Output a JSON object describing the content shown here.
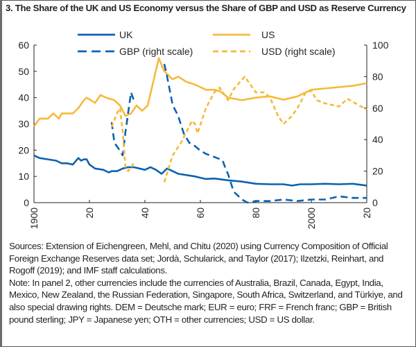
{
  "chart_data": {
    "type": "line",
    "title": "3. The Share of the UK and US Economy versus the Share of GBP and USD as Reserve Currency",
    "xlabel": "",
    "ylabel": "",
    "xlim": [
      1900,
      2020
    ],
    "ylim_left": [
      0,
      60
    ],
    "ylim_right": [
      0,
      100
    ],
    "yticks_left": [
      "0",
      "10",
      "20",
      "30",
      "40",
      "50",
      "60"
    ],
    "yticks_right": [
      "0",
      "20",
      "40",
      "60",
      "80",
      "100"
    ],
    "xticks": [
      {
        "value": 1900,
        "label": "1900"
      },
      {
        "value": 1920,
        "label": "20"
      },
      {
        "value": 1940,
        "label": "40"
      },
      {
        "value": 1960,
        "label": "60"
      },
      {
        "value": 1980,
        "label": "80"
      },
      {
        "value": 2000,
        "label": "2000"
      },
      {
        "value": 2020,
        "label": "20"
      }
    ],
    "grid": false,
    "legend_placement": "top",
    "series": [
      {
        "name": "UK",
        "axis": "left",
        "style": "solid",
        "color": "#0b62b0",
        "x": [
          1900,
          1902,
          1905,
          1908,
          1910,
          1912,
          1914,
          1916,
          1917,
          1918,
          1919,
          1920,
          1922,
          1925,
          1927,
          1928,
          1930,
          1932,
          1934,
          1936,
          1938,
          1940,
          1942,
          1944,
          1946,
          1948,
          1950,
          1952,
          1955,
          1958,
          1960,
          1962,
          1965,
          1970,
          1975,
          1980,
          1985,
          1990,
          1993,
          1996,
          2000,
          2005,
          2010,
          2015,
          2020
        ],
        "y": [
          18,
          17,
          16.5,
          16,
          15,
          15,
          14.5,
          17,
          16,
          16.5,
          16.5,
          14.5,
          13,
          12.5,
          11.5,
          12,
          12,
          13,
          13.5,
          13.5,
          13,
          12.5,
          13.5,
          12.5,
          11,
          13,
          12,
          11,
          10.5,
          10,
          9.5,
          9,
          9.2,
          8.5,
          8,
          7.2,
          7,
          7,
          6.5,
          7,
          7,
          7.2,
          7,
          7.2,
          6.5
        ]
      },
      {
        "name": "US",
        "axis": "left",
        "style": "solid",
        "color": "#f6b93b",
        "x": [
          1900,
          1902,
          1905,
          1907,
          1909,
          1910,
          1914,
          1916,
          1918,
          1919,
          1922,
          1924,
          1926,
          1929,
          1931,
          1933,
          1935,
          1937,
          1939,
          1941,
          1943,
          1945,
          1947,
          1950,
          1952,
          1955,
          1958,
          1960,
          1962,
          1965,
          1967,
          1970,
          1975,
          1980,
          1985,
          1990,
          1995,
          2000,
          2005,
          2010,
          2015,
          2020
        ],
        "y": [
          29,
          32,
          32,
          34,
          32,
          34,
          34,
          36,
          39,
          40,
          38,
          41,
          40,
          39,
          37,
          33,
          34,
          37,
          35,
          37,
          46,
          55,
          50,
          47,
          48,
          46,
          45,
          44,
          43,
          43,
          42.5,
          40,
          39,
          40,
          40.5,
          39.2,
          40.5,
          43,
          43.5,
          44,
          44.5,
          45.5
        ]
      },
      {
        "name": "GBP (right scale)",
        "axis": "right",
        "style": "dashed",
        "color": "#0b62b0",
        "x": [
          1928,
          1929,
          1931,
          1932,
          1933,
          1935,
          1936,
          null,
          1947,
          1948,
          1950,
          1952,
          1954,
          1956,
          1958,
          1960,
          1962,
          1965,
          1968,
          1969,
          1970,
          1972,
          1975,
          1977,
          1980,
          1985,
          1990,
          1995,
          2000,
          2005,
          2010,
          2015,
          2020
        ],
        "y": [
          51,
          38,
          33,
          30,
          45,
          70,
          65,
          null,
          88,
          80,
          62,
          55,
          44,
          38,
          36,
          33,
          31,
          29,
          27,
          22,
          18,
          7,
          2,
          0,
          1,
          1,
          2,
          1,
          2,
          2,
          4,
          3,
          3
        ]
      },
      {
        "name": "USD (right scale)",
        "axis": "right",
        "style": "dashed",
        "color": "#f6b93b",
        "x": [
          1928,
          1930,
          1931,
          1932,
          1933,
          1934,
          1936,
          null,
          1947,
          1950,
          1953,
          1955,
          1957,
          1958,
          1959,
          1962,
          1965,
          1967,
          1970,
          1972,
          1976,
          1978,
          1980,
          1983,
          1985,
          1988,
          1990,
          1993,
          1995,
          1998,
          2000,
          2002,
          2005,
          2010,
          2013,
          2015,
          2020
        ],
        "y": [
          48,
          57,
          60,
          45,
          22,
          20,
          25,
          null,
          13,
          30,
          38,
          45,
          52,
          50,
          44,
          60,
          70,
          73,
          65,
          72,
          80,
          75,
          70,
          70,
          67,
          55,
          50,
          55,
          60,
          70,
          71,
          65,
          63,
          61,
          66,
          64,
          59
        ]
      }
    ]
  },
  "notes": {
    "sources": "Sources: Extension of Eichengreen, Mehl, and Chitu (2020) using Currency Composition of Official  Foreign Exchange Reserves data set; Jordà, Schularick, and Taylor (2017); Ilzetzki, Reinhart, and Rogoff (2019); and IMF staff calculations.",
    "note": "Note: In  panel 2, other currencies include the currencies of Australia, Brazil, Canada, Egypt, India, Mexico, New Zealand, the Russian Federation, Singapore, South Africa, Switzerland, and Türkiye, and also special drawing rights. DEM = Deutsche mark; EUR = euro; FRF = French franc; GBP = British pound sterling; JPY = Japanese yen; OTH = other currencies; USD = US dollar."
  }
}
